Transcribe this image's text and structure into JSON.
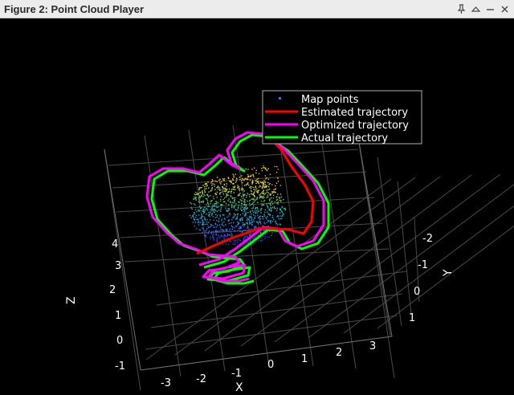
{
  "window": {
    "title": "Figure 2: Point Cloud Player",
    "controls": [
      {
        "name": "pin-icon"
      },
      {
        "name": "collapse-icon"
      },
      {
        "name": "minimize-icon"
      },
      {
        "name": "close-icon"
      }
    ]
  },
  "chart_data": {
    "type": "scatter",
    "title": "",
    "xlabel": "X",
    "ylabel": "Y",
    "zlabel": "Z",
    "xlim": [
      -3.5,
      3.5
    ],
    "ylim": [
      1.2,
      -2.3
    ],
    "zlim": [
      -1.2,
      4.5
    ],
    "x_ticks": [
      "-3",
      "-2",
      "-1",
      "0",
      "1",
      "2",
      "3"
    ],
    "y_ticks": [
      "-2",
      "-1",
      "0",
      "1"
    ],
    "z_ticks": [
      "-1",
      "0",
      "1",
      "2",
      "3",
      "4"
    ],
    "grid": true,
    "background": "#000000",
    "legend_position": "top-right",
    "series": [
      {
        "name": "Map points",
        "type": "points",
        "colormap": "parula-by-height"
      },
      {
        "name": "Estimated trajectory",
        "type": "line",
        "color": "#ff0000"
      },
      {
        "name": "Optimized trajectory",
        "type": "line",
        "color": "#ff00ff"
      },
      {
        "name": "Actual trajectory",
        "type": "line",
        "color": "#00ff00"
      }
    ]
  }
}
